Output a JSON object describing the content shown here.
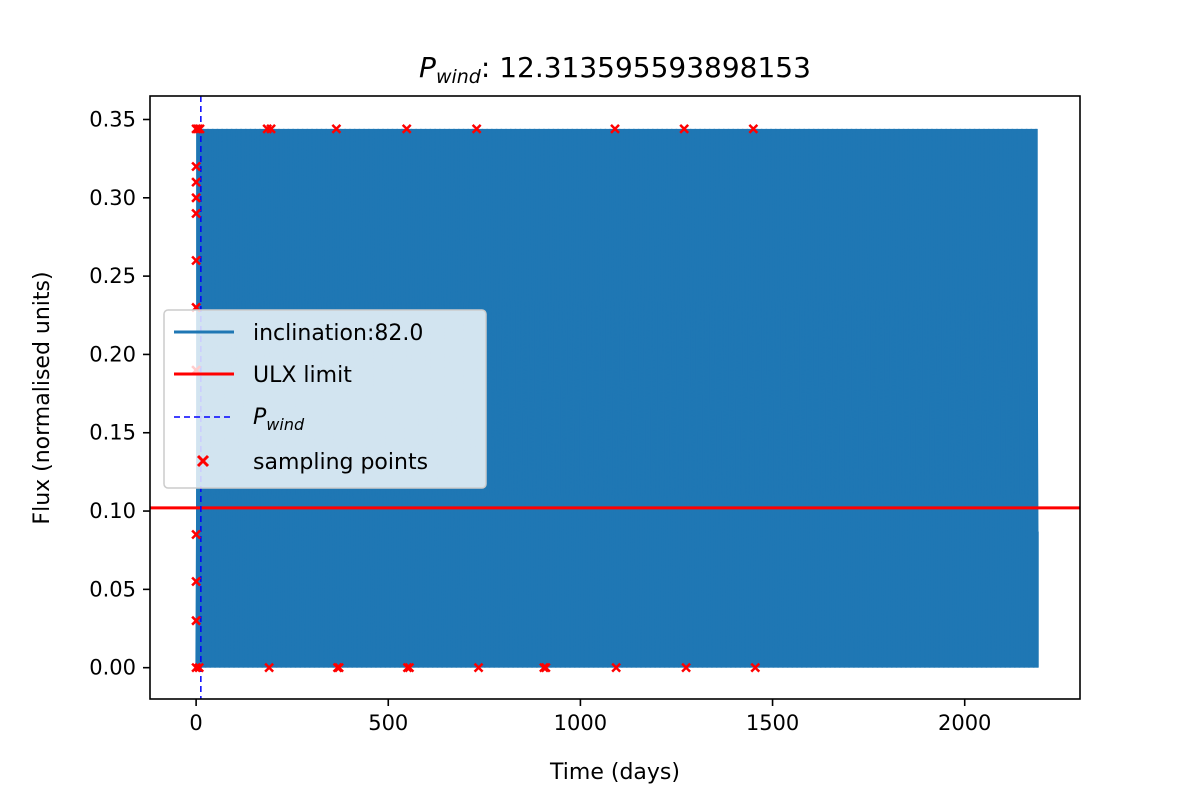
{
  "chart_data": {
    "type": "line",
    "title": {
      "symbol": "P",
      "subscript": "wind",
      "value": ": 12.313595593898153"
    },
    "xlabel": "Time (days)",
    "ylabel": "Flux (normalised units)",
    "xlim": [
      -120,
      2300
    ],
    "ylim": [
      -0.02,
      0.365
    ],
    "xticks": [
      0,
      500,
      1000,
      1500,
      2000
    ],
    "yticks": [
      0.0,
      0.05,
      0.1,
      0.15,
      0.2,
      0.25,
      0.3,
      0.35
    ],
    "xtick_labels": [
      "0",
      "500",
      "1000",
      "1500",
      "2000"
    ],
    "ytick_labels": [
      "0.00",
      "0.05",
      "0.10",
      "0.15",
      "0.20",
      "0.25",
      "0.30",
      "0.35"
    ],
    "grid": false,
    "legend_position": "center-left",
    "legend": [
      {
        "label": "inclination:82.0",
        "kind": "line",
        "color": "#1f77b4"
      },
      {
        "label": "ULX limit",
        "kind": "line",
        "color": "#ff0000"
      },
      {
        "label_symbol": "P",
        "label_subscript": "wind",
        "kind": "dashed-line",
        "color": "#0000ff"
      },
      {
        "label": "sampling points",
        "kind": "marker-x",
        "color": "#ff0000"
      }
    ],
    "series": [
      {
        "name": "inclination:82.0",
        "color": "#1f77b4",
        "x_start": 0,
        "x_end": 2190,
        "y_min": 0.0,
        "y_max": 0.344,
        "period": 12.313595593898153,
        "end_value": 0.087
      }
    ],
    "ulx_limit": {
      "y": 0.102,
      "color": "#ff0000"
    },
    "p_wind_line": {
      "x": 12.313595593898153,
      "color": "#0000ff"
    },
    "sampling_points": {
      "color": "#ff0000",
      "points": [
        [
          0,
          0.0
        ],
        [
          0,
          0.03
        ],
        [
          0,
          0.055
        ],
        [
          0,
          0.085
        ],
        [
          0,
          0.19
        ],
        [
          0,
          0.23
        ],
        [
          0,
          0.26
        ],
        [
          0,
          0.29
        ],
        [
          0,
          0.3
        ],
        [
          0,
          0.31
        ],
        [
          0,
          0.32
        ],
        [
          0,
          0.344
        ],
        [
          5,
          0.344
        ],
        [
          8,
          0.0
        ],
        [
          10,
          0.344
        ],
        [
          185,
          0.344
        ],
        [
          190,
          0.0
        ],
        [
          195,
          0.344
        ],
        [
          365,
          0.344
        ],
        [
          368,
          0.0
        ],
        [
          372,
          0.0
        ],
        [
          548,
          0.344
        ],
        [
          550,
          0.0
        ],
        [
          555,
          0.0
        ],
        [
          730,
          0.344
        ],
        [
          735,
          0.0
        ],
        [
          905,
          0.0
        ],
        [
          910,
          0.0
        ],
        [
          1090,
          0.344
        ],
        [
          1093,
          0.0
        ],
        [
          1270,
          0.344
        ],
        [
          1275,
          0.0
        ],
        [
          1450,
          0.344
        ],
        [
          1455,
          0.0
        ]
      ]
    }
  }
}
